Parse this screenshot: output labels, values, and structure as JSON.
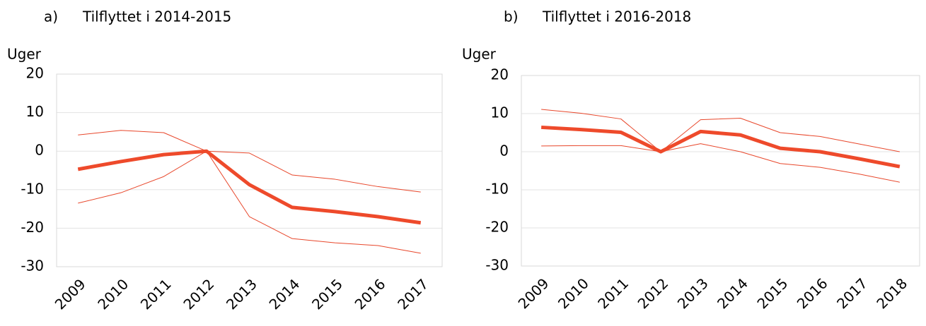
{
  "chart_data": [
    {
      "type": "line",
      "label": "a)",
      "title": "Tilflyttet i 2014-2015",
      "y_label": "Uger",
      "categories": [
        "2009",
        "2010",
        "2011",
        "2012",
        "2013",
        "2014",
        "2015",
        "2016",
        "2017"
      ],
      "ylim": [
        -30,
        20
      ],
      "yticks": [
        -30,
        -20,
        -10,
        0,
        10,
        20
      ],
      "grid": true,
      "series": [
        {
          "color": "#e8472b",
          "line_width": 1,
          "values": [
            4.2,
            5.4,
            4.8,
            0,
            -0.5,
            -6.2,
            -7.3,
            -9.2,
            -10.6
          ]
        },
        {
          "color": "#e8472b",
          "line_width": 1,
          "values": [
            -13.5,
            -10.8,
            -6.6,
            0,
            -17,
            -22.7,
            -23.8,
            -24.5,
            -26.5
          ]
        },
        {
          "color": "#ee4a2b",
          "line_width": 5,
          "values": [
            -4.7,
            -2.7,
            -0.9,
            0,
            -8.7,
            -14.6,
            -15.7,
            -17,
            -18.6
          ]
        }
      ]
    },
    {
      "type": "line",
      "label": "b)",
      "title": "Tilflyttet i 2016-2018",
      "y_label": "Uger",
      "categories": [
        "2009",
        "2010",
        "2011",
        "2012",
        "2013",
        "2014",
        "2015",
        "2016",
        "2017",
        "2018"
      ],
      "ylim": [
        -30,
        20
      ],
      "yticks": [
        -30,
        -20,
        -10,
        0,
        10,
        20
      ],
      "grid": true,
      "series": [
        {
          "color": "#e8472b",
          "line_width": 1,
          "values": [
            11.1,
            10.1,
            8.6,
            0,
            8.4,
            8.8,
            5,
            4,
            2,
            0
          ]
        },
        {
          "color": "#e8472b",
          "line_width": 1,
          "values": [
            1.5,
            1.6,
            1.6,
            0,
            2.1,
            0,
            -3.1,
            -4.1,
            -5.9,
            -8
          ]
        },
        {
          "color": "#ee4a2b",
          "line_width": 5,
          "values": [
            6.4,
            5.8,
            5.1,
            0,
            5.3,
            4.4,
            0.9,
            0,
            -1.9,
            -3.9
          ]
        }
      ]
    }
  ]
}
